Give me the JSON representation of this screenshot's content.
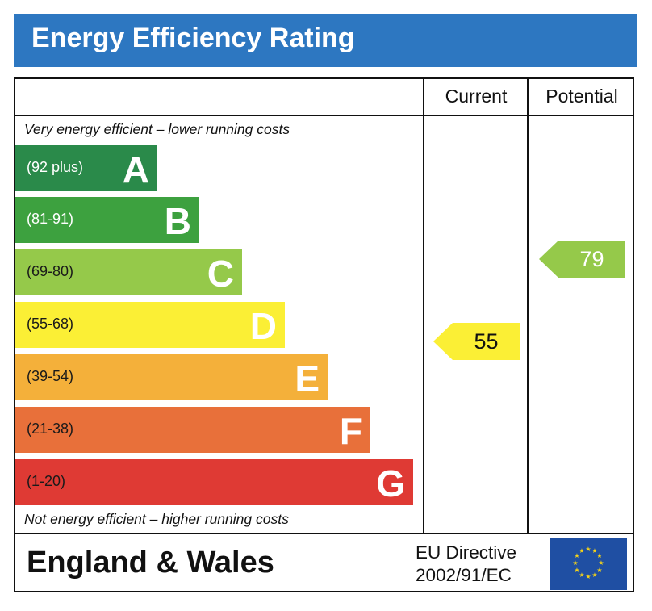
{
  "title": "Energy Efficiency Rating",
  "columns": {
    "current": "Current",
    "potential": "Potential"
  },
  "captions": {
    "top": "Very energy efficient – lower running costs",
    "bottom": "Not energy efficient – higher running costs"
  },
  "footer": {
    "country": "England & Wales",
    "directive_line1": "EU Directive",
    "directive_line2": "2002/91/EC",
    "flag_icon": "eu-flag-icon"
  },
  "chart_data": {
    "type": "bar",
    "categories": [
      "A",
      "B",
      "C",
      "D",
      "E",
      "F",
      "G"
    ],
    "bands": [
      {
        "letter": "A",
        "range": "(92 plus)",
        "min": 92,
        "max": 100,
        "color": "#2a8a4a",
        "range_color": "#ffffff",
        "letter_color": "#ffffff"
      },
      {
        "letter": "B",
        "range": "(81-91)",
        "min": 81,
        "max": 91,
        "color": "#3da13f",
        "range_color": "#ffffff",
        "letter_color": "#ffffff"
      },
      {
        "letter": "C",
        "range": "(69-80)",
        "min": 69,
        "max": 80,
        "color": "#95c94a",
        "range_color": "#1a1a1a",
        "letter_color": "#ffffff"
      },
      {
        "letter": "D",
        "range": "(55-68)",
        "min": 55,
        "max": 68,
        "color": "#fbef35",
        "range_color": "#1a1a1a",
        "letter_color": "#ffffff"
      },
      {
        "letter": "E",
        "range": "(39-54)",
        "min": 39,
        "max": 54,
        "color": "#f4b03a",
        "range_color": "#1a1a1a",
        "letter_color": "#ffffff"
      },
      {
        "letter": "F",
        "range": "(21-38)",
        "min": 21,
        "max": 38,
        "color": "#e8703a",
        "range_color": "#1a1a1a",
        "letter_color": "#ffffff"
      },
      {
        "letter": "G",
        "range": "(1-20)",
        "min": 1,
        "max": 20,
        "color": "#df3a34",
        "range_color": "#1a1a1a",
        "letter_color": "#ffffff"
      }
    ],
    "series": [
      {
        "name": "Current",
        "value": 55,
        "band": "D",
        "color": "#fbef35",
        "text_color": "#111111"
      },
      {
        "name": "Potential",
        "value": 79,
        "band": "C",
        "color": "#95c94a",
        "text_color": "#ffffff"
      }
    ]
  }
}
